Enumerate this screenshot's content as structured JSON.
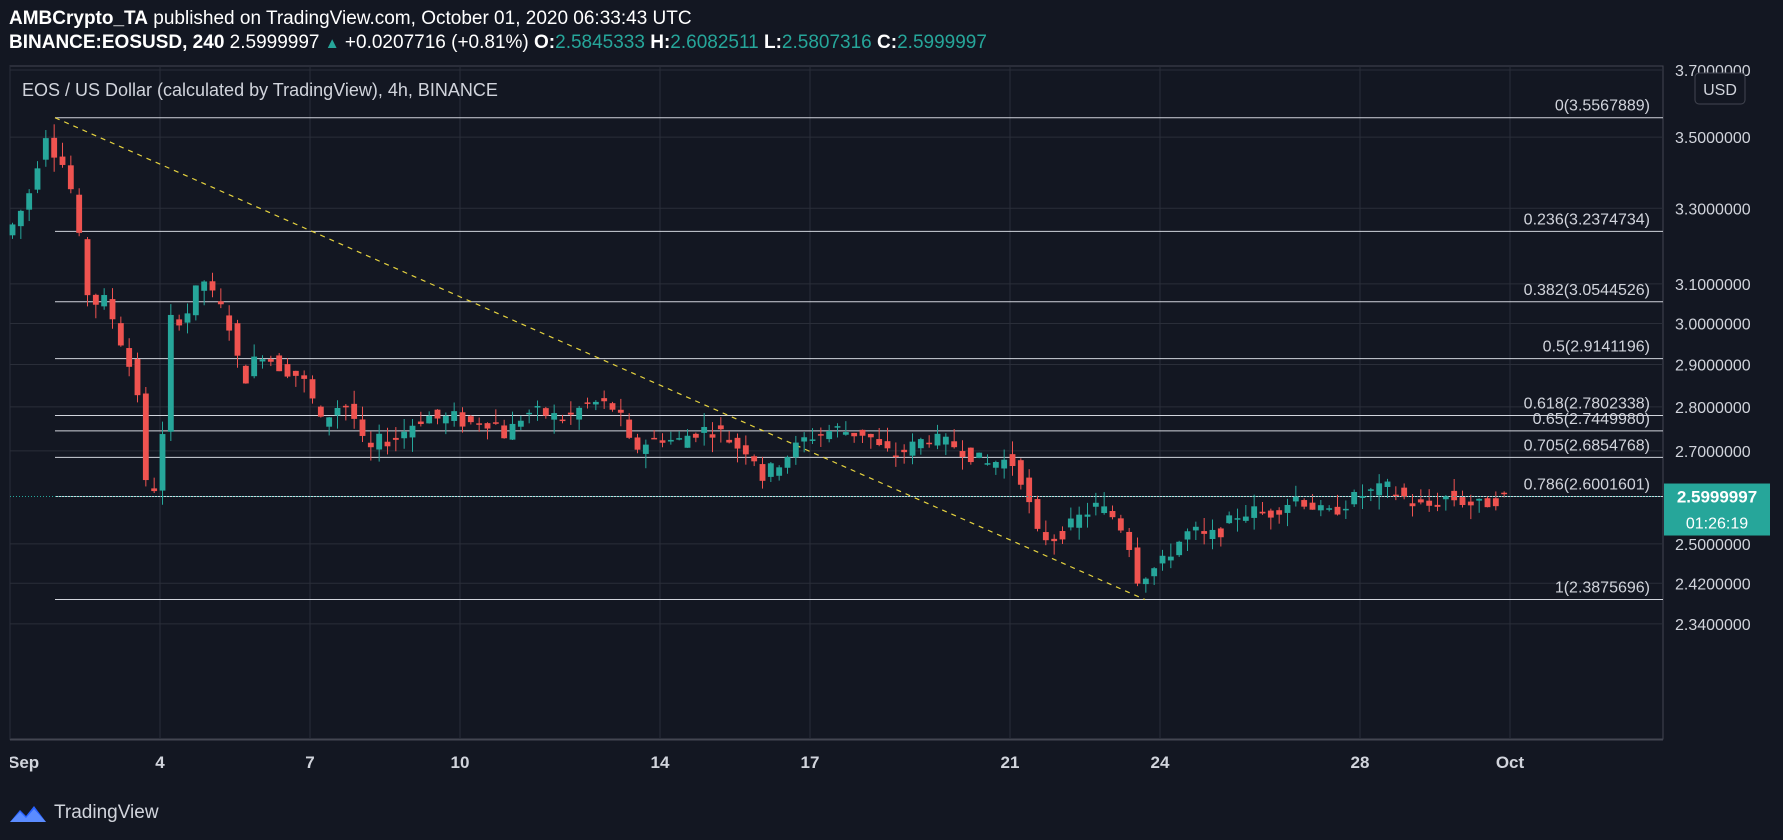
{
  "header": {
    "publisher": "AMBCrypto_TA",
    "published_text": "published on TradingView.com, October 01, 2020 06:33:43 UTC",
    "symbol": "BINANCE:EOSUSD, 240",
    "last": "2.5999997",
    "change": "+0.0207716 (+0.81%)",
    "o_label": "O:",
    "o_value": "2.5845333",
    "h_label": "H:",
    "h_value": "2.6082511",
    "l_label": "L:",
    "l_value": "2.5807316",
    "c_label": "C:",
    "c_value": "2.5999997"
  },
  "footer": {
    "brand": "TradingView"
  },
  "colors": {
    "background": "#131722",
    "up": "#26a69a",
    "down": "#ef5350",
    "grid": "#2a2e39",
    "fib_line": "#d1d4dc",
    "trend_line": "#e5d23f"
  },
  "chart_data": {
    "type": "candlestick",
    "title": "EOS / US Dollar (calculated by TradingView), 4h, BINANCE",
    "currency": "USD",
    "y_log_scale": true,
    "ylim": [
      2.29,
      3.7
    ],
    "y_ticks": [
      {
        "value": 3.7,
        "label": "3.7000000"
      },
      {
        "value": 3.5,
        "label": "3.5000000"
      },
      {
        "value": 3.3,
        "label": "3.3000000"
      },
      {
        "value": 3.1,
        "label": "3.1000000"
      },
      {
        "value": 3.0,
        "label": "3.0000000"
      },
      {
        "value": 2.9,
        "label": "2.9000000"
      },
      {
        "value": 2.8,
        "label": "2.8000000"
      },
      {
        "value": 2.7,
        "label": "2.7000000"
      },
      {
        "value": 2.5,
        "label": "2.5000000"
      },
      {
        "value": 2.42,
        "label": "2.4200000"
      },
      {
        "value": 2.34,
        "label": "2.3400000"
      }
    ],
    "x_range_days": [
      1.0,
      31.1
    ],
    "x_ticks": [
      {
        "day": 1,
        "label": "Sep"
      },
      {
        "day": 4,
        "label": "4"
      },
      {
        "day": 7,
        "label": "7"
      },
      {
        "day": 10,
        "label": "10"
      },
      {
        "day": 14,
        "label": "14"
      },
      {
        "day": 17,
        "label": "17"
      },
      {
        "day": 21,
        "label": "21"
      },
      {
        "day": 24,
        "label": "24"
      },
      {
        "day": 28,
        "label": "28"
      },
      {
        "day": 31,
        "label": "Oct"
      }
    ],
    "last_price": {
      "value": 2.5999997,
      "label": "2.5999997",
      "countdown": "01:26:19"
    },
    "fib_retracement": [
      {
        "level": "0",
        "price": 3.5567889,
        "label": "0(3.5567889)"
      },
      {
        "level": "0.236",
        "price": 3.2374734,
        "label": "0.236(3.2374734)"
      },
      {
        "level": "0.382",
        "price": 3.0544526,
        "label": "0.382(3.0544526)"
      },
      {
        "level": "0.5",
        "price": 2.9141196,
        "label": "0.5(2.9141196)"
      },
      {
        "level": "0.618",
        "price": 2.7802338,
        "label": "0.618(2.7802338)"
      },
      {
        "level": "0.65",
        "price": 2.744998,
        "label": "0.65(2.7449980)"
      },
      {
        "level": "0.705",
        "price": 2.6854768,
        "label": "0.705(2.6854768)"
      },
      {
        "level": "0.786",
        "price": 2.6001601,
        "label": "0.786(2.6001601)"
      },
      {
        "level": "1",
        "price": 2.3875696,
        "label": "1(2.3875696)"
      }
    ],
    "fib_start_day": 1.9,
    "trend_line": {
      "from": {
        "day": 1.9,
        "price": 3.5567889
      },
      "to": {
        "day": 23.7,
        "price": 2.3875696
      }
    },
    "price_path": [
      [
        1.0,
        3.22
      ],
      [
        1.2,
        3.25
      ],
      [
        1.5,
        3.32
      ],
      [
        1.7,
        3.42
      ],
      [
        1.9,
        3.52
      ],
      [
        2.0,
        3.47
      ],
      [
        2.2,
        3.43
      ],
      [
        2.5,
        3.3
      ],
      [
        2.6,
        3.13
      ],
      [
        2.8,
        3.04
      ],
      [
        3.0,
        3.07
      ],
      [
        3.2,
        3.02
      ],
      [
        3.4,
        2.95
      ],
      [
        3.6,
        2.88
      ],
      [
        3.8,
        2.8
      ],
      [
        3.9,
        2.59
      ],
      [
        4.1,
        2.63
      ],
      [
        4.3,
        2.8
      ],
      [
        4.4,
        3.05
      ],
      [
        4.6,
        3.0
      ],
      [
        4.8,
        3.05
      ],
      [
        5.0,
        3.12
      ],
      [
        5.3,
        3.05
      ],
      [
        5.5,
        3.02
      ],
      [
        5.7,
        2.92
      ],
      [
        5.8,
        2.85
      ],
      [
        6.0,
        2.9
      ],
      [
        6.2,
        2.93
      ],
      [
        6.5,
        2.9
      ],
      [
        6.8,
        2.88
      ],
      [
        7.0,
        2.87
      ],
      [
        7.2,
        2.82
      ],
      [
        7.4,
        2.76
      ],
      [
        7.6,
        2.79
      ],
      [
        7.8,
        2.81
      ],
      [
        8.0,
        2.79
      ],
      [
        8.2,
        2.72
      ],
      [
        8.4,
        2.7
      ],
      [
        8.6,
        2.73
      ],
      [
        8.8,
        2.72
      ],
      [
        9.0,
        2.74
      ],
      [
        9.2,
        2.76
      ],
      [
        9.5,
        2.78
      ],
      [
        9.8,
        2.77
      ],
      [
        10.0,
        2.78
      ],
      [
        10.3,
        2.76
      ],
      [
        10.6,
        2.77
      ],
      [
        10.9,
        2.76
      ],
      [
        11.1,
        2.73
      ],
      [
        11.3,
        2.77
      ],
      [
        11.6,
        2.79
      ],
      [
        12.0,
        2.78
      ],
      [
        12.3,
        2.77
      ],
      [
        12.6,
        2.8
      ],
      [
        12.9,
        2.81
      ],
      [
        13.2,
        2.8
      ],
      [
        13.4,
        2.77
      ],
      [
        13.6,
        2.7
      ],
      [
        13.9,
        2.72
      ],
      [
        14.2,
        2.73
      ],
      [
        14.5,
        2.72
      ],
      [
        14.8,
        2.74
      ],
      [
        15.1,
        2.75
      ],
      [
        15.4,
        2.74
      ],
      [
        15.7,
        2.71
      ],
      [
        16.0,
        2.7
      ],
      [
        16.2,
        2.64
      ],
      [
        16.4,
        2.66
      ],
      [
        16.6,
        2.68
      ],
      [
        16.8,
        2.7
      ],
      [
        17.1,
        2.73
      ],
      [
        17.4,
        2.74
      ],
      [
        17.7,
        2.75
      ],
      [
        18.0,
        2.74
      ],
      [
        18.3,
        2.74
      ],
      [
        18.6,
        2.7
      ],
      [
        18.9,
        2.69
      ],
      [
        19.2,
        2.71
      ],
      [
        19.5,
        2.73
      ],
      [
        19.8,
        2.72
      ],
      [
        20.1,
        2.71
      ],
      [
        20.4,
        2.69
      ],
      [
        20.7,
        2.67
      ],
      [
        21.0,
        2.68
      ],
      [
        21.3,
        2.67
      ],
      [
        21.5,
        2.6
      ],
      [
        21.7,
        2.52
      ],
      [
        22.0,
        2.51
      ],
      [
        22.3,
        2.53
      ],
      [
        22.6,
        2.56
      ],
      [
        22.9,
        2.58
      ],
      [
        23.2,
        2.56
      ],
      [
        23.5,
        2.52
      ],
      [
        23.7,
        2.43
      ],
      [
        23.9,
        2.44
      ],
      [
        24.2,
        2.46
      ],
      [
        24.5,
        2.5
      ],
      [
        24.8,
        2.53
      ],
      [
        25.1,
        2.51
      ],
      [
        25.4,
        2.53
      ],
      [
        25.7,
        2.56
      ],
      [
        26.0,
        2.57
      ],
      [
        26.3,
        2.56
      ],
      [
        26.6,
        2.58
      ],
      [
        26.9,
        2.6
      ],
      [
        27.2,
        2.58
      ],
      [
        27.5,
        2.56
      ],
      [
        27.8,
        2.58
      ],
      [
        28.1,
        2.6
      ],
      [
        28.4,
        2.61
      ],
      [
        28.7,
        2.62
      ],
      [
        29.0,
        2.6
      ],
      [
        29.3,
        2.58
      ],
      [
        29.6,
        2.58
      ],
      [
        29.9,
        2.6
      ],
      [
        30.2,
        2.59
      ],
      [
        30.5,
        2.58
      ],
      [
        30.8,
        2.59
      ],
      [
        31.0,
        2.6
      ]
    ]
  }
}
